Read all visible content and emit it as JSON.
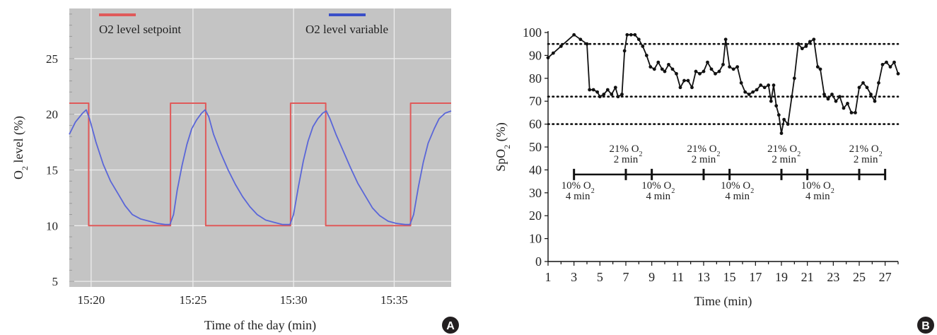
{
  "chart_data": [
    {
      "panel": "A",
      "type": "line",
      "ylabel": "O2 level (%)",
      "xlabel": "Time of the day (min)",
      "ylim": [
        4.5,
        29.5
      ],
      "xlim": [
        15.315,
        15.63
      ],
      "yticks": [
        5,
        10,
        15,
        20,
        25
      ],
      "xticks": [
        {
          "value": 15.333,
          "label": "15:20"
        },
        {
          "value": 15.417,
          "label": "15:25"
        },
        {
          "value": 15.5,
          "label": "15:30"
        },
        {
          "value": 15.583,
          "label": "15:35"
        }
      ],
      "grid": true,
      "background": "#c4c4c4",
      "legend": [
        {
          "name": "O2 level setpoint",
          "color": "#e05a5a"
        },
        {
          "name": "O2 level variable",
          "color": "#3a4fc8"
        }
      ],
      "series": [
        {
          "name": "O2 level setpoint",
          "color": "#e05a5a",
          "points": [
            [
              15.315,
              21
            ],
            [
              15.331,
              21
            ],
            [
              15.331,
              10
            ],
            [
              15.3985,
              10
            ],
            [
              15.3985,
              21
            ],
            [
              15.4275,
              21
            ],
            [
              15.4275,
              10
            ],
            [
              15.4975,
              10
            ],
            [
              15.4975,
              21
            ],
            [
              15.5265,
              21
            ],
            [
              15.5265,
              10
            ],
            [
              15.5965,
              10
            ],
            [
              15.5965,
              21
            ],
            [
              15.63,
              21
            ]
          ]
        },
        {
          "name": "O2 level variable",
          "color": "#5a66d8",
          "points": [
            [
              15.315,
              18.2
            ],
            [
              15.32,
              19.3
            ],
            [
              15.326,
              20.1
            ],
            [
              15.329,
              20.4
            ],
            [
              15.332,
              19.5
            ],
            [
              15.337,
              17.5
            ],
            [
              15.343,
              15.5
            ],
            [
              15.349,
              14
            ],
            [
              15.355,
              12.9
            ],
            [
              15.361,
              11.8
            ],
            [
              15.367,
              11
            ],
            [
              15.374,
              10.6
            ],
            [
              15.381,
              10.4
            ],
            [
              15.388,
              10.2
            ],
            [
              15.394,
              10.1
            ],
            [
              15.398,
              10.1
            ],
            [
              15.401,
              11
            ],
            [
              15.404,
              13.2
            ],
            [
              15.408,
              15.4
            ],
            [
              15.412,
              17.3
            ],
            [
              15.416,
              18.7
            ],
            [
              15.42,
              19.5
            ],
            [
              15.424,
              20.1
            ],
            [
              15.427,
              20.4
            ],
            [
              15.43,
              19.8
            ],
            [
              15.434,
              18.2
            ],
            [
              15.44,
              16.5
            ],
            [
              15.446,
              15
            ],
            [
              15.452,
              13.7
            ],
            [
              15.458,
              12.6
            ],
            [
              15.464,
              11.7
            ],
            [
              15.47,
              11
            ],
            [
              15.477,
              10.5
            ],
            [
              15.484,
              10.3
            ],
            [
              15.491,
              10.1
            ],
            [
              15.497,
              10.1
            ],
            [
              15.5,
              11
            ],
            [
              15.504,
              13.5
            ],
            [
              15.508,
              15.8
            ],
            [
              15.512,
              17.6
            ],
            [
              15.516,
              18.9
            ],
            [
              15.52,
              19.6
            ],
            [
              15.524,
              20.1
            ],
            [
              15.527,
              20.3
            ],
            [
              15.53,
              19.6
            ],
            [
              15.535,
              18.2
            ],
            [
              15.541,
              16.7
            ],
            [
              15.547,
              15.2
            ],
            [
              15.553,
              13.8
            ],
            [
              15.559,
              12.7
            ],
            [
              15.565,
              11.6
            ],
            [
              15.571,
              10.9
            ],
            [
              15.578,
              10.4
            ],
            [
              15.585,
              10.2
            ],
            [
              15.592,
              10.1
            ],
            [
              15.596,
              10.1
            ],
            [
              15.599,
              11
            ],
            [
              15.603,
              13.5
            ],
            [
              15.607,
              15.7
            ],
            [
              15.611,
              17.4
            ],
            [
              15.616,
              18.7
            ],
            [
              15.62,
              19.6
            ],
            [
              15.625,
              20.1
            ],
            [
              15.63,
              20.3
            ]
          ]
        }
      ]
    },
    {
      "panel": "B",
      "type": "line",
      "ylabel": "SpO2 (%)",
      "xlabel": "Time (min)",
      "ylim": [
        0,
        100
      ],
      "xlim": [
        1,
        28
      ],
      "yticks": [
        0,
        10,
        20,
        30,
        40,
        50,
        60,
        70,
        80,
        90,
        100
      ],
      "xticks": [
        1,
        3,
        5,
        7,
        9,
        11,
        13,
        15,
        17,
        19,
        21,
        23,
        25,
        27
      ],
      "reference_lines": [
        95,
        72,
        60
      ],
      "series": [
        {
          "name": "",
          "color": "#111111",
          "points": [
            [
              1,
              89
            ],
            [
              1.4,
              91
            ],
            [
              2,
              94
            ],
            [
              3,
              99
            ],
            [
              3.5,
              97
            ],
            [
              4,
              95
            ],
            [
              4.2,
              75
            ],
            [
              4.5,
              75
            ],
            [
              4.8,
              74
            ],
            [
              5,
              72
            ],
            [
              5.3,
              73
            ],
            [
              5.6,
              75
            ],
            [
              5.9,
              73
            ],
            [
              6.2,
              76
            ],
            [
              6.4,
              72
            ],
            [
              6.7,
              73
            ],
            [
              6.9,
              92
            ],
            [
              7.1,
              99
            ],
            [
              7.4,
              99
            ],
            [
              7.7,
              99
            ],
            [
              8,
              97
            ],
            [
              8.3,
              94
            ],
            [
              8.6,
              90
            ],
            [
              8.9,
              85
            ],
            [
              9.2,
              84
            ],
            [
              9.5,
              87
            ],
            [
              9.8,
              84
            ],
            [
              10,
              83
            ],
            [
              10.3,
              86
            ],
            [
              10.6,
              84
            ],
            [
              10.9,
              82
            ],
            [
              11.2,
              76
            ],
            [
              11.5,
              79
            ],
            [
              11.8,
              79
            ],
            [
              12.1,
              76
            ],
            [
              12.4,
              83
            ],
            [
              12.7,
              82
            ],
            [
              13,
              83
            ],
            [
              13.3,
              87
            ],
            [
              13.6,
              84
            ],
            [
              13.9,
              82
            ],
            [
              14.2,
              83
            ],
            [
              14.5,
              86
            ],
            [
              14.7,
              97
            ],
            [
              15,
              85
            ],
            [
              15.3,
              84
            ],
            [
              15.6,
              85
            ],
            [
              15.9,
              78
            ],
            [
              16.2,
              74
            ],
            [
              16.5,
              73
            ],
            [
              16.8,
              74
            ],
            [
              17.1,
              75
            ],
            [
              17.4,
              77
            ],
            [
              17.7,
              76
            ],
            [
              18,
              77
            ],
            [
              18.2,
              70
            ],
            [
              18.4,
              77
            ],
            [
              18.6,
              68
            ],
            [
              18.8,
              64
            ],
            [
              19,
              56
            ],
            [
              19.2,
              62
            ],
            [
              19.5,
              60
            ],
            [
              19.8,
              72
            ],
            [
              20,
              80
            ],
            [
              20.3,
              95
            ],
            [
              20.6,
              93
            ],
            [
              20.9,
              94
            ],
            [
              21.2,
              96
            ],
            [
              21.5,
              97
            ],
            [
              21.8,
              85
            ],
            [
              22,
              84
            ],
            [
              22.3,
              73
            ],
            [
              22.6,
              71
            ],
            [
              22.9,
              73
            ],
            [
              23.2,
              70
            ],
            [
              23.5,
              72
            ],
            [
              23.8,
              67
            ],
            [
              24.1,
              69
            ],
            [
              24.4,
              65
            ],
            [
              24.7,
              65
            ],
            [
              25,
              76
            ],
            [
              25.3,
              78
            ],
            [
              25.6,
              76
            ],
            [
              25.9,
              73
            ],
            [
              26.2,
              70
            ],
            [
              26.5,
              78
            ],
            [
              26.8,
              86
            ],
            [
              27.1,
              87
            ],
            [
              27.4,
              85
            ],
            [
              27.7,
              87
            ],
            [
              28,
              82
            ]
          ]
        }
      ],
      "protocol_bar": {
        "y": 38,
        "ticks": [
          3,
          7,
          9,
          13,
          15,
          19,
          21,
          25,
          27
        ],
        "labels": [
          {
            "x": 3.3,
            "position": "below",
            "line1": "10% O2",
            "line2": "4 min"
          },
          {
            "x": 7,
            "position": "above",
            "line1": "21% O2",
            "line2": "2 min"
          },
          {
            "x": 9.5,
            "position": "below",
            "line1": "10% O2",
            "line2": "4 min"
          },
          {
            "x": 13,
            "position": "above",
            "line1": "21% O2",
            "line2": "2 min"
          },
          {
            "x": 15.6,
            "position": "below",
            "line1": "10% O2",
            "line2": "4 min"
          },
          {
            "x": 19.2,
            "position": "above",
            "line1": "21% O2",
            "line2": "2 min"
          },
          {
            "x": 21.8,
            "position": "below",
            "line1": "10% O2",
            "line2": "4 min"
          },
          {
            "x": 25.5,
            "position": "above",
            "line1": "21% O2",
            "line2": "2 min"
          }
        ]
      }
    }
  ],
  "badges": {
    "a": "A",
    "b": "B"
  }
}
